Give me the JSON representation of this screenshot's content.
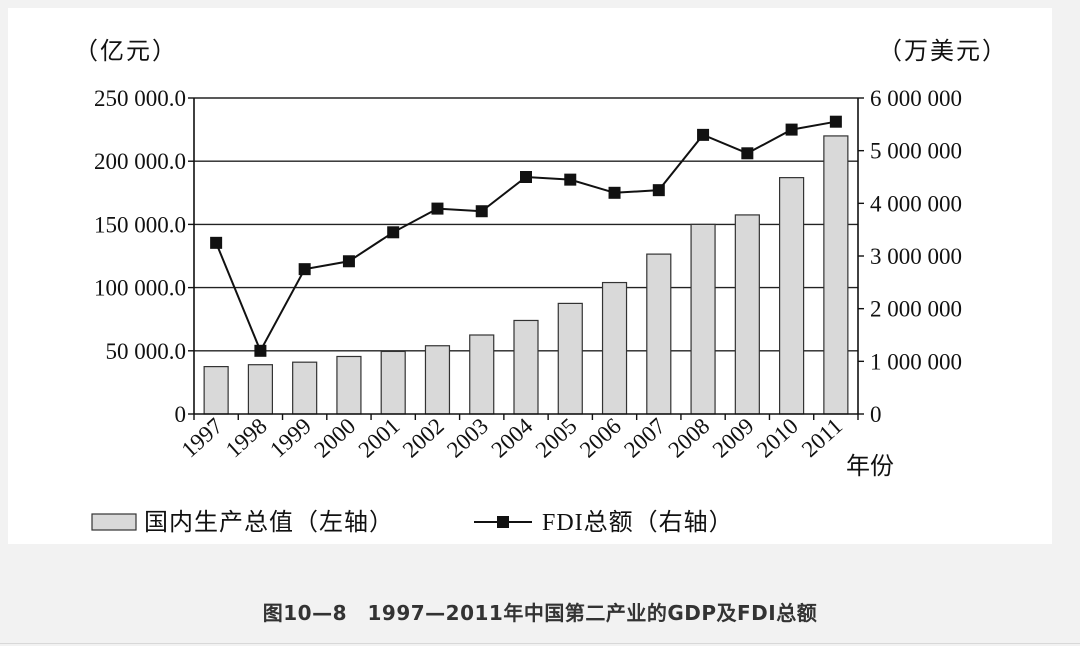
{
  "caption": "图10—8　1997—2011年中国第二产业的GDP及FDI总额",
  "chart_data": {
    "type": "bar+line",
    "title": "1997—2011年中国第二产业的GDP及FDI总额",
    "categories": [
      "1997",
      "1998",
      "1999",
      "2000",
      "2001",
      "2002",
      "2003",
      "2004",
      "2005",
      "2006",
      "2007",
      "2008",
      "2009",
      "2010",
      "2011"
    ],
    "xlabel": "年份",
    "left_axis": {
      "unit_label": "（亿元）",
      "range": [
        0,
        250000
      ],
      "ticks": [
        0,
        50000,
        100000,
        150000,
        200000,
        250000
      ],
      "tick_labels": [
        "0",
        "50 000.0",
        "100 000.0",
        "150 000.0",
        "200 000.0",
        "250 000.0"
      ]
    },
    "right_axis": {
      "unit_label": "（万美元）",
      "range": [
        0,
        6000000
      ],
      "ticks": [
        0,
        1000000,
        2000000,
        3000000,
        4000000,
        5000000,
        6000000
      ],
      "tick_labels": [
        "0",
        "1 000 000",
        "2 000 000",
        "3 000 000",
        "4 000 000",
        "5 000 000",
        "6 000 000"
      ]
    },
    "grid": true,
    "series": [
      {
        "name": "国内生产总值（左轴）",
        "type": "bar",
        "axis": "left",
        "color": "#d9d9d9",
        "values": [
          37500,
          39000,
          41000,
          45500,
          49500,
          54000,
          62500,
          74000,
          87500,
          104000,
          126500,
          150000,
          157500,
          187000,
          220000
        ]
      },
      {
        "name": "FDI总额（右轴）",
        "type": "line",
        "axis": "right",
        "color": "#111111",
        "values": [
          3250000,
          1200000,
          2750000,
          2900000,
          3450000,
          3900000,
          3850000,
          4500000,
          4450000,
          4200000,
          4250000,
          5300000,
          4950000,
          5400000,
          5550000
        ]
      }
    ],
    "legend_position": "bottom"
  }
}
